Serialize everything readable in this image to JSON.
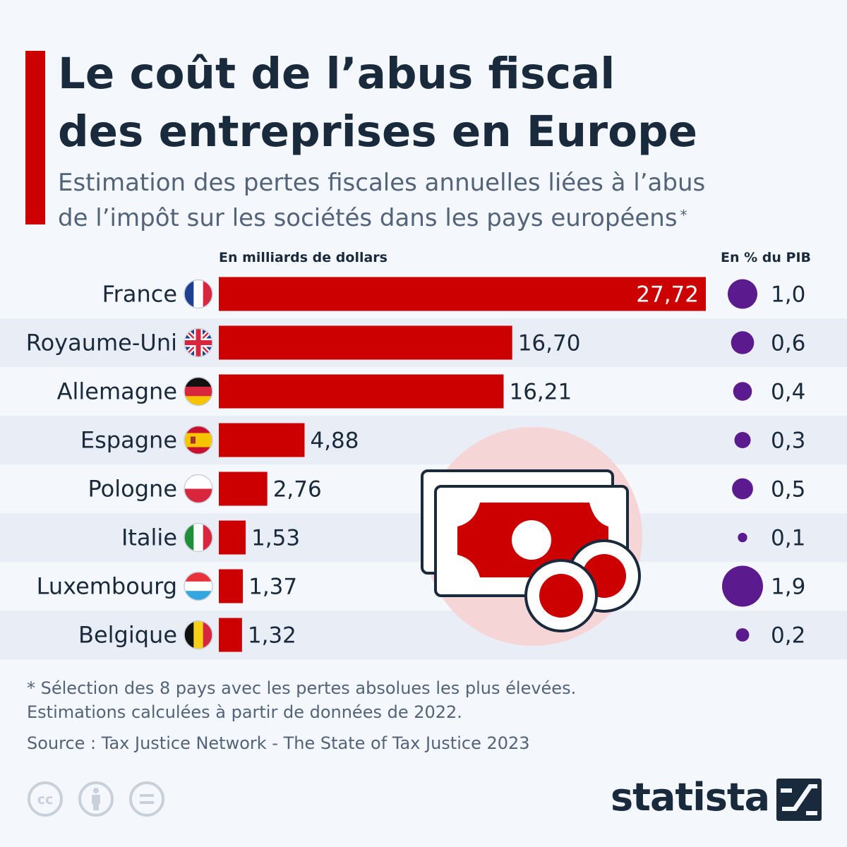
{
  "title_lines": [
    "Le coût de l’abus fiscal",
    "des entreprises en Europe"
  ],
  "subtitle_lines": [
    "Estimation des pertes fiscales annuelles liées à l’abus",
    "de l’impôt sur les sociétés dans les pays européens"
  ],
  "subtitle_mark": "*",
  "colors": {
    "bar": "#cc0000",
    "bubble": "#5b1a8e",
    "stripe": "#e9eef6",
    "text": "#1a2a3d",
    "muted": "#53637a"
  },
  "chart_data": {
    "type": "bar",
    "orientation": "horizontal",
    "bar_axis_label": "En milliards de dollars",
    "gdp_axis_label": "En % du PIB",
    "categories": [
      "France",
      "Royaume-Uni",
      "Allemagne",
      "Espagne",
      "Pologne",
      "Italie",
      "Luxembourg",
      "Belgique"
    ],
    "flags": [
      "flag-france-icon",
      "flag-uk-icon",
      "flag-germany-icon",
      "flag-spain-icon",
      "flag-poland-icon",
      "flag-italy-icon",
      "flag-luxembourg-icon",
      "flag-belgium-icon"
    ],
    "values": [
      27.72,
      16.7,
      16.21,
      4.88,
      2.76,
      1.53,
      1.37,
      1.32
    ],
    "value_labels": [
      "27,72",
      "16,70",
      "16,21",
      "4,88",
      "2,76",
      "1,53",
      "1,37",
      "1,32"
    ],
    "gdp_share": [
      1.0,
      0.6,
      0.4,
      0.3,
      0.5,
      0.1,
      1.9,
      0.2
    ],
    "gdp_labels": [
      "1,0",
      "0,6",
      "0,4",
      "0,3",
      "0,5",
      "0,1",
      "1,9",
      "0,2"
    ],
    "xlim": [
      0,
      27.72
    ],
    "grid": false,
    "legend": "none"
  },
  "illustration": "banknotes-coins-icon",
  "footnote_lines": [
    "* Sélection des 8 pays avec les pertes absolues les plus élevées.",
    "Estimations calculées à partir de données de 2022."
  ],
  "source": "Source : Tax Justice Network - The State of Tax Justice 2023",
  "license_icons": [
    "cc-icon",
    "by-icon",
    "nd-icon"
  ],
  "brand": "statista"
}
